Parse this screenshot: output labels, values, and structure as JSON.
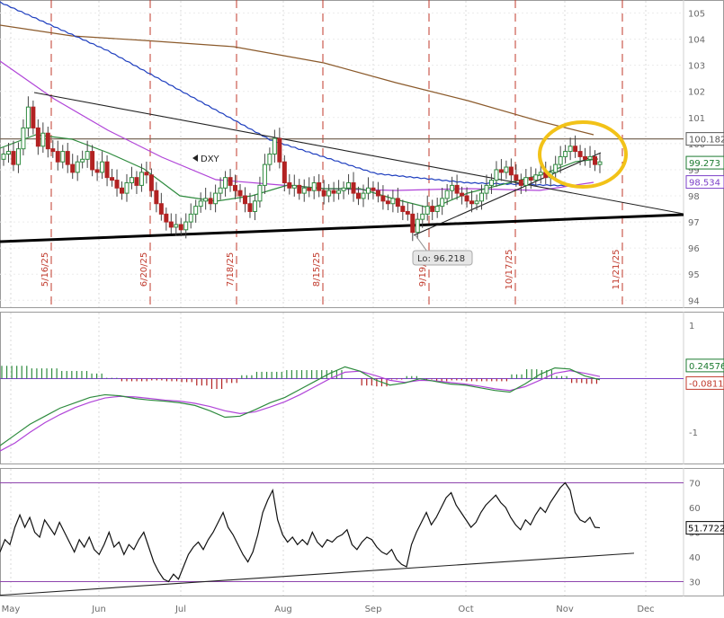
{
  "chart_data": [
    {
      "type": "candlestick",
      "symbol": "DXY",
      "ylim": [
        93.7,
        105.5
      ],
      "y_ticks": [
        94,
        95,
        96,
        97,
        98,
        99,
        100,
        101,
        102,
        103,
        104,
        105
      ],
      "x_months": [
        "May",
        "Jun",
        "Jul",
        "Aug",
        "Sep",
        "Oct",
        "Nov",
        "Dec"
      ],
      "event_dates": [
        "5/16/25",
        "6/20/25",
        "7/18/25",
        "8/15/25",
        "9/19/25",
        "10/17/25",
        "11/21/25"
      ],
      "low_annotation": "Lo: 96.218",
      "price_tags": [
        {
          "label": "100.182",
          "value": 100.18,
          "color": "#555555"
        },
        {
          "label": "99.273",
          "value": 99.27,
          "color": "#1b7a2f"
        },
        {
          "label": "98.534",
          "value": 98.53,
          "color": "#7b3fc8"
        }
      ],
      "horizontal_level": 100.18,
      "closes": [
        99.6,
        99.7,
        99.2,
        99.8,
        100.6,
        101.4,
        100.6,
        99.9,
        100.4,
        99.8,
        99.7,
        99.3,
        99.7,
        99.2,
        98.9,
        99.3,
        99.4,
        99.7,
        99.0,
        98.9,
        99.3,
        98.7,
        98.6,
        98.3,
        98.1,
        98.5,
        98.7,
        98.4,
        98.9,
        98.8,
        98.2,
        97.7,
        97.3,
        97.0,
        96.8,
        96.9,
        96.7,
        97.0,
        97.3,
        97.6,
        97.8,
        97.9,
        97.7,
        98.1,
        98.3,
        98.7,
        98.4,
        98.2,
        98.0,
        97.7,
        97.4,
        97.8,
        98.4,
        99.2,
        99.6,
        100.2,
        99.3,
        98.5,
        98.3,
        98.4,
        98.1,
        98.3,
        98.2,
        98.5,
        98.2,
        98.0,
        98.2,
        98.1,
        98.2,
        98.3,
        98.5,
        98.1,
        97.9,
        98.1,
        98.3,
        98.2,
        98.0,
        97.8,
        97.7,
        97.9,
        97.6,
        97.4,
        97.3,
        96.6,
        97.1,
        97.3,
        97.6,
        97.4,
        97.6,
        97.9,
        98.2,
        98.4,
        98.1,
        98.0,
        97.8,
        97.7,
        97.8,
        98.1,
        98.4,
        98.6,
        99.0,
        98.9,
        99.1,
        98.8,
        98.6,
        98.4,
        98.7,
        98.6,
        98.8,
        98.9,
        98.7,
        98.9,
        99.2,
        99.5,
        99.7,
        99.9,
        99.7,
        99.5,
        99.4,
        99.5,
        99.2,
        99.3
      ]
    },
    {
      "type": "line",
      "panel": "MACD",
      "ylim": [
        -1.6,
        1.25
      ],
      "y_ticks": [
        1,
        -1
      ],
      "price_tags": [
        {
          "label": "0.24576",
          "value": 0.246,
          "color": "#1b7a2f"
        },
        {
          "label": "-0.0811",
          "value": -0.081,
          "color": "#c0392b"
        }
      ],
      "macd": [
        -1.25,
        -1.05,
        -0.85,
        -0.7,
        -0.55,
        -0.45,
        -0.35,
        -0.3,
        -0.32,
        -0.37,
        -0.4,
        -0.42,
        -0.45,
        -0.5,
        -0.6,
        -0.72,
        -0.7,
        -0.58,
        -0.45,
        -0.35,
        -0.2,
        -0.05,
        0.1,
        0.22,
        0.14,
        -0.02,
        -0.12,
        -0.08,
        0.0,
        -0.05,
        -0.1,
        -0.12,
        -0.17,
        -0.22,
        -0.25,
        -0.1,
        0.08,
        0.2,
        0.18,
        0.05,
        -0.02
      ],
      "signal": [
        -1.35,
        -1.2,
        -1.0,
        -0.82,
        -0.67,
        -0.54,
        -0.44,
        -0.36,
        -0.33,
        -0.34,
        -0.37,
        -0.4,
        -0.42,
        -0.46,
        -0.52,
        -0.6,
        -0.65,
        -0.62,
        -0.53,
        -0.43,
        -0.3,
        -0.15,
        0.0,
        0.12,
        0.14,
        0.06,
        -0.03,
        -0.07,
        -0.03,
        -0.04,
        -0.07,
        -0.1,
        -0.14,
        -0.19,
        -0.22,
        -0.15,
        -0.03,
        0.1,
        0.15,
        0.1,
        0.04
      ]
    },
    {
      "type": "line",
      "panel": "RSI",
      "ylim": [
        24,
        76
      ],
      "y_ticks": [
        30,
        40,
        50,
        60,
        70
      ],
      "overbought": 70,
      "oversold": 30,
      "price_tags": [
        {
          "label": "51.7722",
          "value": 51.77,
          "color": "#000000"
        }
      ],
      "values": [
        42,
        47,
        45,
        52,
        57,
        52,
        56,
        50,
        48,
        55,
        52,
        49,
        54,
        50,
        46,
        42,
        47,
        44,
        48,
        43,
        41,
        45,
        50,
        44,
        46,
        41,
        45,
        43,
        47,
        50,
        44,
        38,
        34,
        31,
        30,
        33,
        31,
        36,
        41,
        44,
        46,
        43,
        47,
        50,
        54,
        58,
        52,
        49,
        45,
        41,
        38,
        42,
        49,
        58,
        63,
        67,
        55,
        49,
        46,
        48,
        45,
        47,
        45,
        50,
        46,
        44,
        47,
        46,
        48,
        49,
        51,
        45,
        43,
        46,
        48,
        47,
        44,
        42,
        41,
        43,
        39,
        37,
        36,
        45,
        50,
        54,
        58,
        53,
        56,
        60,
        64,
        66,
        61,
        58,
        55,
        52,
        54,
        58,
        61,
        63,
        65,
        62,
        60,
        56,
        53,
        51,
        55,
        53,
        57,
        60,
        58,
        62,
        65,
        68,
        70,
        67,
        58,
        55,
        54,
        56,
        52,
        51.8
      ]
    }
  ]
}
